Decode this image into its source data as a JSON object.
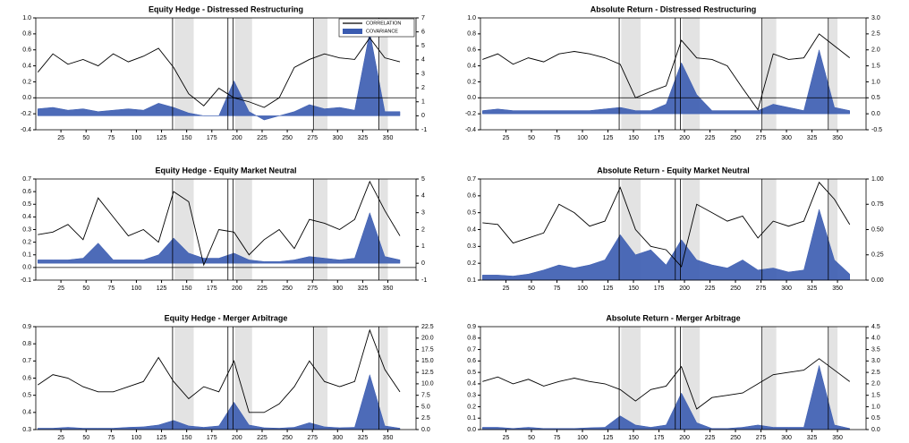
{
  "chart_data": [
    {
      "type": "line-area",
      "title": "Equity Hedge - Distressed Restructuring",
      "x": [
        2,
        17,
        32,
        47,
        62,
        77,
        92,
        107,
        122,
        137,
        152,
        167,
        182,
        197,
        212,
        227,
        242,
        257,
        272,
        287,
        302,
        317,
        332,
        347,
        362
      ],
      "series": [
        {
          "name": "CORRELATION",
          "color": "#000000",
          "values": [
            0.32,
            0.55,
            0.42,
            0.48,
            0.4,
            0.55,
            0.45,
            0.52,
            0.62,
            0.38,
            0.05,
            -0.1,
            0.12,
            0.0,
            -0.05,
            -0.12,
            0.0,
            0.38,
            0.48,
            0.55,
            0.5,
            0.48,
            0.75,
            0.5,
            0.45
          ]
        },
        {
          "name": "COVARIANCE",
          "color": "#3a5bb0",
          "axis": "y2",
          "values": [
            0.5,
            0.6,
            0.4,
            0.5,
            0.3,
            0.4,
            0.5,
            0.4,
            0.9,
            0.6,
            0.2,
            0,
            0,
            2.5,
            0.3,
            -0.3,
            0,
            0.3,
            0.8,
            0.5,
            0.6,
            0.4,
            6,
            0.3,
            0.3
          ]
        }
      ],
      "xlim": [
        0,
        378
      ],
      "xticks": [
        25,
        50,
        75,
        100,
        125,
        150,
        175,
        200,
        225,
        250,
        275,
        300,
        325,
        350
      ],
      "ylim": [
        -0.4,
        1.0
      ],
      "yticks": [
        -0.4,
        -0.2,
        {
          "value": 0,
          "label": "0.0"
        },
        0.2,
        0.4,
        0.6,
        0.8,
        {
          "value": 1,
          "label": "1.0"
        }
      ],
      "y2lim": [
        -1,
        7
      ],
      "y2ticks": [
        -1,
        0,
        1,
        2,
        3,
        4,
        5,
        6,
        7
      ],
      "zero_line": true,
      "legend": "upper right",
      "shaded_regions": [
        [
          138,
          157
        ],
        [
          198,
          215
        ],
        [
          277,
          290
        ],
        [
          342,
          350
        ]
      ],
      "event_lines": [
        136,
        191,
        196,
        276,
        341
      ]
    },
    {
      "type": "line-area",
      "title": "Absolute Return  - Distressed Restructuring",
      "x": [
        2,
        17,
        32,
        47,
        62,
        77,
        92,
        107,
        122,
        137,
        152,
        167,
        182,
        197,
        212,
        227,
        242,
        257,
        272,
        287,
        302,
        317,
        332,
        347,
        362
      ],
      "series": [
        {
          "color": "#000000",
          "values": [
            0.48,
            0.55,
            0.42,
            0.5,
            0.45,
            0.55,
            0.58,
            0.55,
            0.5,
            0.42,
            0.0,
            0.08,
            0.15,
            0.72,
            0.5,
            0.48,
            0.4,
            0.12,
            -0.15,
            0.55,
            0.48,
            0.5,
            0.8,
            0.65,
            0.5
          ]
        },
        {
          "color": "#3a5bb0",
          "axis": "y2",
          "values": [
            0.1,
            0.15,
            0.1,
            0.1,
            0.1,
            0.1,
            0.1,
            0.1,
            0.15,
            0.2,
            0.1,
            0.1,
            0.3,
            1.6,
            0.6,
            0.1,
            0.1,
            0.1,
            0.1,
            0.3,
            0.2,
            0.1,
            2.0,
            0.2,
            0.1
          ]
        }
      ],
      "xlim": [
        0,
        378
      ],
      "xticks": [
        25,
        50,
        75,
        100,
        125,
        150,
        175,
        200,
        225,
        250,
        275,
        300,
        325,
        350
      ],
      "ylim": [
        -0.4,
        1.0
      ],
      "yticks": [
        -0.4,
        -0.2,
        {
          "value": 0,
          "label": "0.0"
        },
        0.2,
        0.4,
        0.6,
        0.8,
        {
          "value": 1,
          "label": "1.0"
        }
      ],
      "y2lim": [
        -0.5,
        3.0
      ],
      "y2ticks": [
        -0.5,
        {
          "value": 0,
          "label": "0.0"
        },
        0.5,
        {
          "value": 1,
          "label": "1.0"
        },
        1.5,
        {
          "value": 2,
          "label": "2.0"
        },
        2.5,
        {
          "value": 3,
          "label": "3.0"
        }
      ],
      "zero_line": true,
      "shaded_regions": [
        [
          138,
          157
        ],
        [
          198,
          215
        ],
        [
          277,
          290
        ],
        [
          342,
          350
        ]
      ],
      "event_lines": [
        136,
        191,
        196,
        276,
        341
      ]
    },
    {
      "type": "line-area",
      "title": "Equity Hedge - Equity Market Neutral",
      "x": [
        2,
        17,
        32,
        47,
        62,
        77,
        92,
        107,
        122,
        137,
        152,
        167,
        182,
        197,
        212,
        227,
        242,
        257,
        272,
        287,
        302,
        317,
        332,
        347,
        362
      ],
      "series": [
        {
          "color": "#000000",
          "values": [
            0.26,
            0.28,
            0.34,
            0.22,
            0.55,
            0.4,
            0.25,
            0.3,
            0.2,
            0.6,
            0.52,
            0.02,
            0.3,
            0.28,
            0.1,
            0.22,
            0.3,
            0.15,
            0.38,
            0.35,
            0.3,
            0.38,
            0.68,
            0.45,
            0.25
          ]
        },
        {
          "color": "#3a5bb0",
          "axis": "y2",
          "values": [
            0.2,
            0.2,
            0.2,
            0.3,
            1.2,
            0.2,
            0.2,
            0.2,
            0.5,
            1.5,
            0.6,
            0.3,
            0.3,
            0.6,
            0.2,
            0.1,
            0.1,
            0.2,
            0.4,
            0.3,
            0.2,
            0.3,
            3.0,
            0.4,
            0.2
          ]
        }
      ],
      "xlim": [
        0,
        378
      ],
      "xticks": [
        25,
        50,
        75,
        100,
        125,
        150,
        175,
        200,
        225,
        250,
        275,
        300,
        325,
        350
      ],
      "ylim": [
        -0.1,
        0.7
      ],
      "yticks": [
        -0.1,
        {
          "value": 0,
          "label": "0.0"
        },
        0.1,
        0.2,
        0.3,
        0.4,
        0.5,
        0.6,
        0.7
      ],
      "y2lim": [
        -1,
        5
      ],
      "y2ticks": [
        -1,
        0,
        1,
        2,
        3,
        4,
        5
      ],
      "zero_line": true,
      "shaded_regions": [
        [
          138,
          157
        ],
        [
          198,
          215
        ],
        [
          277,
          290
        ],
        [
          342,
          350
        ]
      ],
      "event_lines": [
        136,
        191,
        196,
        276,
        341
      ]
    },
    {
      "type": "line-area",
      "title": "Absolute Return - Equity Market Neutral",
      "x": [
        2,
        17,
        32,
        47,
        62,
        77,
        92,
        107,
        122,
        137,
        152,
        167,
        182,
        197,
        212,
        227,
        242,
        257,
        272,
        287,
        302,
        317,
        332,
        347,
        362
      ],
      "series": [
        {
          "color": "#000000",
          "values": [
            0.44,
            0.43,
            0.32,
            0.35,
            0.38,
            0.55,
            0.5,
            0.42,
            0.45,
            0.65,
            0.4,
            0.3,
            0.28,
            0.18,
            0.55,
            0.5,
            0.45,
            0.48,
            0.35,
            0.45,
            0.42,
            0.45,
            0.68,
            0.58,
            0.43
          ]
        },
        {
          "color": "#3a5bb0",
          "axis": "y2",
          "values": [
            0.05,
            0.05,
            0.04,
            0.06,
            0.1,
            0.15,
            0.12,
            0.15,
            0.2,
            0.45,
            0.25,
            0.3,
            0.15,
            0.4,
            0.2,
            0.15,
            0.12,
            0.2,
            0.1,
            0.12,
            0.08,
            0.1,
            0.7,
            0.2,
            0.06
          ]
        }
      ],
      "xlim": [
        0,
        378
      ],
      "xticks": [
        25,
        50,
        75,
        100,
        125,
        150,
        175,
        200,
        225,
        250,
        275,
        300,
        325,
        350
      ],
      "ylim": [
        0.1,
        0.7
      ],
      "yticks": [
        0.1,
        0.2,
        0.3,
        0.4,
        0.5,
        0.6,
        0.7
      ],
      "y2lim": [
        0,
        1
      ],
      "y2ticks": [
        {
          "value": 0,
          "label": "0.00"
        },
        0.25,
        {
          "value": 0.5,
          "label": "0.50"
        },
        0.75,
        {
          "value": 1,
          "label": "1.00"
        }
      ],
      "shaded_regions": [
        [
          138,
          157
        ],
        [
          198,
          215
        ],
        [
          277,
          290
        ],
        [
          342,
          350
        ]
      ],
      "event_lines": [
        136,
        191,
        196,
        276,
        341
      ]
    },
    {
      "type": "line-area",
      "title": "Equity Hedge - Merger Arbitrage",
      "x": [
        2,
        17,
        32,
        47,
        62,
        77,
        92,
        107,
        122,
        137,
        152,
        167,
        182,
        197,
        212,
        227,
        242,
        257,
        272,
        287,
        302,
        317,
        332,
        347,
        362
      ],
      "series": [
        {
          "color": "#000000",
          "values": [
            0.56,
            0.62,
            0.6,
            0.55,
            0.52,
            0.52,
            0.55,
            0.58,
            0.72,
            0.58,
            0.48,
            0.55,
            0.52,
            0.7,
            0.4,
            0.4,
            0.45,
            0.55,
            0.7,
            0.58,
            0.55,
            0.58,
            0.88,
            0.65,
            0.52
          ]
        },
        {
          "color": "#3a5bb0",
          "axis": "y2",
          "values": [
            0.3,
            0.3,
            0.5,
            0.3,
            0.3,
            0.3,
            0.5,
            0.6,
            1.0,
            2.0,
            0.8,
            0.5,
            0.8,
            6.0,
            1.0,
            0.4,
            0.3,
            0.5,
            1.5,
            0.6,
            0.4,
            0.5,
            12.0,
            0.8,
            0.3
          ]
        }
      ],
      "xlim": [
        0,
        378
      ],
      "xticks": [
        25,
        50,
        75,
        100,
        125,
        150,
        175,
        200,
        225,
        250,
        275,
        300,
        325,
        350
      ],
      "ylim": [
        0.3,
        0.9
      ],
      "yticks": [
        0.3,
        0.4,
        0.5,
        0.6,
        0.7,
        0.8,
        0.9
      ],
      "y2lim": [
        0,
        22.5
      ],
      "y2ticks": [
        {
          "value": 0,
          "label": "0.0"
        },
        2.5,
        {
          "value": 5,
          "label": "5.0"
        },
        7.5,
        {
          "value": 10,
          "label": "10.0"
        },
        12.5,
        {
          "value": 15,
          "label": "15.0"
        },
        17.5,
        {
          "value": 20,
          "label": "20.0"
        },
        22.5
      ],
      "shaded_regions": [
        [
          138,
          157
        ],
        [
          198,
          215
        ],
        [
          277,
          290
        ],
        [
          342,
          350
        ]
      ],
      "event_lines": [
        136,
        191,
        196,
        276,
        341
      ]
    },
    {
      "type": "line-area",
      "title": "Absolute Return - Merger Arbitrage",
      "x": [
        2,
        17,
        32,
        47,
        62,
        77,
        92,
        107,
        122,
        137,
        152,
        167,
        182,
        197,
        212,
        227,
        242,
        257,
        272,
        287,
        302,
        317,
        332,
        347,
        362
      ],
      "series": [
        {
          "color": "#000000",
          "values": [
            0.42,
            0.46,
            0.4,
            0.44,
            0.38,
            0.42,
            0.45,
            0.42,
            0.4,
            0.35,
            0.25,
            0.35,
            0.38,
            0.55,
            0.18,
            0.28,
            0.3,
            0.32,
            0.4,
            0.48,
            0.5,
            0.52,
            0.62,
            0.52,
            0.42
          ]
        },
        {
          "color": "#3a5bb0",
          "axis": "y2",
          "values": [
            0.1,
            0.1,
            0.05,
            0.1,
            0.05,
            0.05,
            0.05,
            0.08,
            0.1,
            0.6,
            0.2,
            0.1,
            0.2,
            1.6,
            0.3,
            0.05,
            0.05,
            0.1,
            0.2,
            0.1,
            0.1,
            0.1,
            2.8,
            0.2,
            0.05
          ]
        }
      ],
      "xlim": [
        0,
        378
      ],
      "xticks": [
        25,
        50,
        75,
        100,
        125,
        150,
        175,
        200,
        225,
        250,
        275,
        300,
        325,
        350
      ],
      "ylim": [
        0,
        0.9
      ],
      "yticks": [
        {
          "value": 0,
          "label": "0.0"
        },
        0.1,
        0.2,
        0.3,
        0.4,
        0.5,
        0.6,
        0.7,
        0.8,
        0.9
      ],
      "y2lim": [
        0,
        4.5
      ],
      "y2ticks": [
        {
          "value": 0,
          "label": "0.0"
        },
        0.5,
        {
          "value": 1,
          "label": "1.0"
        },
        1.5,
        {
          "value": 2,
          "label": "2.0"
        },
        2.5,
        {
          "value": 3,
          "label": "3.0"
        },
        3.5,
        {
          "value": 4,
          "label": "4.0"
        },
        4.5
      ],
      "shaded_regions": [
        [
          138,
          157
        ],
        [
          198,
          215
        ],
        [
          277,
          290
        ],
        [
          342,
          350
        ]
      ],
      "event_lines": [
        136,
        191,
        196,
        276,
        341
      ]
    }
  ]
}
